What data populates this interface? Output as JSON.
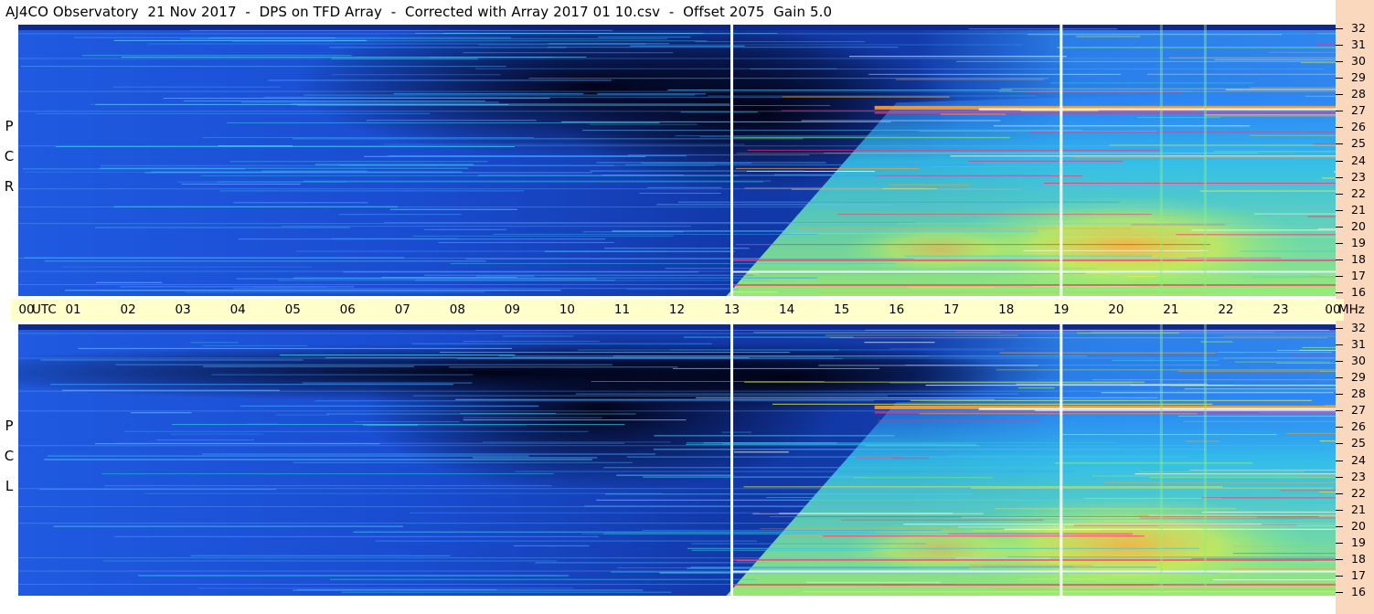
{
  "title": "AJ4CO Observatory  21 Nov 2017  -  DPS on TFD Array  -  Corrected with Array 2017 01 10.csv  -  Offset 2075  Gain 5.0",
  "chart_data": [
    {
      "type": "heatmap",
      "panel": "RCP",
      "side_label": [
        "R",
        "C",
        "P"
      ],
      "x_unit": "UTC",
      "x_ticks": [
        "00",
        "01",
        "02",
        "03",
        "04",
        "05",
        "06",
        "07",
        "08",
        "09",
        "10",
        "11",
        "12",
        "13",
        "14",
        "15",
        "16",
        "17",
        "18",
        "19",
        "20",
        "21",
        "22",
        "23",
        "00"
      ],
      "x_range_hours": [
        0,
        24
      ],
      "y_unit": "MHz",
      "y_ticks": [
        "16",
        "17",
        "18",
        "19",
        "20",
        "21",
        "22",
        "23",
        "24",
        "25",
        "26",
        "27",
        "28",
        "29",
        "30",
        "31",
        "32"
      ],
      "y_range_mhz": [
        16,
        32
      ],
      "markers_utc": [
        13,
        19
      ],
      "colormap": [
        "#0a1a6a",
        "#1a4fd8",
        "#2f8cff",
        "#35c8e8",
        "#8ef07a",
        "#e8f040",
        "#ffa030",
        "#ff3070",
        "#ffffff"
      ]
    },
    {
      "type": "heatmap",
      "panel": "LCP",
      "side_label": [
        "L",
        "C",
        "P"
      ],
      "x_unit": "UTC",
      "x_ticks": [
        "00",
        "01",
        "02",
        "03",
        "04",
        "05",
        "06",
        "07",
        "08",
        "09",
        "10",
        "11",
        "12",
        "13",
        "14",
        "15",
        "16",
        "17",
        "18",
        "19",
        "20",
        "21",
        "22",
        "23",
        "00"
      ],
      "x_range_hours": [
        0,
        24
      ],
      "y_unit": "MHz",
      "y_ticks": [
        "16",
        "17",
        "18",
        "19",
        "20",
        "21",
        "22",
        "23",
        "24",
        "25",
        "26",
        "27",
        "28",
        "29",
        "30",
        "31",
        "32"
      ],
      "y_range_mhz": [
        16,
        32
      ],
      "markers_utc": [
        13,
        19
      ],
      "colormap": [
        "#0a1a6a",
        "#1a4fd8",
        "#2f8cff",
        "#35c8e8",
        "#8ef07a",
        "#e8f040",
        "#ffa030",
        "#ff3070",
        "#ffffff"
      ]
    }
  ],
  "axis": {
    "utc_label": "UTC",
    "mhz_label": "MHz"
  }
}
